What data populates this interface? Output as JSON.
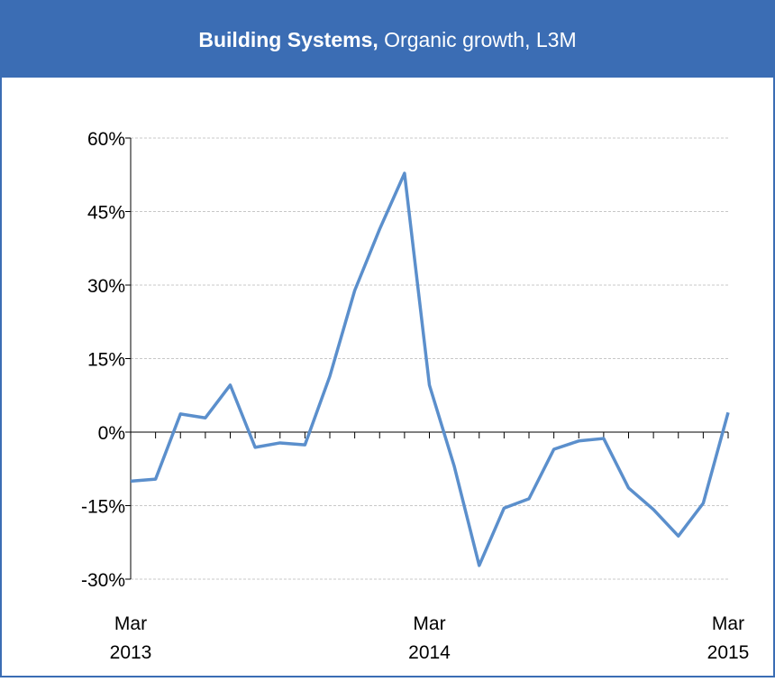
{
  "chart_data": {
    "type": "line",
    "title_bold": "Building Systems,",
    "title": "Organic growth, L3M",
    "categories": [
      "Mar 2013",
      null,
      null,
      null,
      null,
      null,
      null,
      null,
      null,
      null,
      null,
      null,
      "Mar 2014",
      null,
      null,
      null,
      null,
      null,
      null,
      null,
      null,
      null,
      null,
      null,
      "Mar 2015"
    ],
    "series": [
      {
        "name": "Organic growth",
        "color": "#5b8fcc",
        "values": [
          -10,
          -9.6,
          3.7,
          2.9,
          9.6,
          -3.1,
          -2.2,
          -2.6,
          11.4,
          28.9,
          41.4,
          52.8,
          9.6,
          -7.0,
          -27.2,
          -15.5,
          -13.6,
          -3.5,
          -1.8,
          -1.3,
          -11.4,
          -15.8,
          -21.2,
          -14.5,
          4.0
        ]
      }
    ],
    "ylim": [
      -30,
      60
    ],
    "yticks": [
      {
        "value": -30,
        "label": "-30%"
      },
      {
        "value": -15,
        "label": "-15%"
      },
      {
        "value": 0,
        "label": "0%"
      },
      {
        "value": 15,
        "label": "15%"
      },
      {
        "value": 30,
        "label": "30%"
      },
      {
        "value": 45,
        "label": "45%"
      },
      {
        "value": 60,
        "label": "60%"
      }
    ],
    "grid": true
  }
}
